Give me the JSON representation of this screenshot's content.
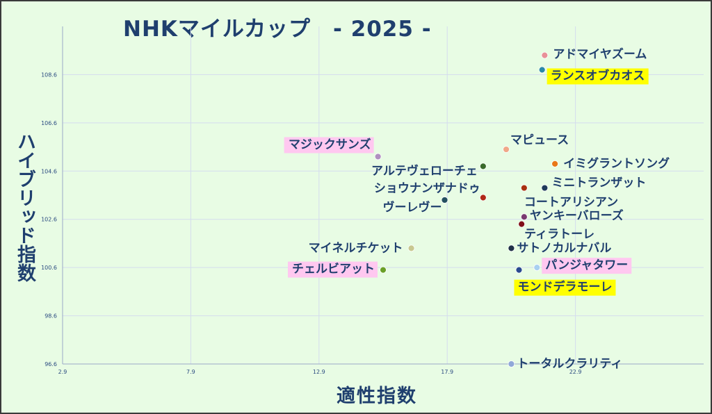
{
  "chart_data": {
    "type": "scatter",
    "title": "NHKマイルカップ　- 2025 -",
    "xlabel": "適性指数",
    "ylabel": "ハイブリッド指数",
    "xlim": [
      2.9,
      27.9
    ],
    "ylim": [
      96.6,
      110.6
    ],
    "x_ticks": [
      "2.9",
      "7.9",
      "12.9",
      "17.9",
      "22.9"
    ],
    "y_ticks": [
      "96.6",
      "98.6",
      "100.6",
      "102.6",
      "104.6",
      "106.6",
      "108.6"
    ],
    "grid": true,
    "points": [
      {
        "label": "アドマイヤズーム",
        "x": 21.7,
        "y": 109.4,
        "color": "#e89098",
        "highlight": ""
      },
      {
        "label": "ランスオブカオス",
        "x": 21.6,
        "y": 108.8,
        "color": "#2a8aa8",
        "highlight": "#ffff00"
      },
      {
        "label": "マジックサンズ",
        "x": 15.2,
        "y": 105.2,
        "color": "#b090c0",
        "highlight": "#ffc8f0"
      },
      {
        "label": "マピュース",
        "x": 20.2,
        "y": 105.5,
        "color": "#f0a888",
        "highlight": ""
      },
      {
        "label": "イミグラントソング",
        "x": 22.1,
        "y": 104.9,
        "color": "#e87818",
        "highlight": ""
      },
      {
        "label": "アルテヴェローチェ",
        "x": 19.3,
        "y": 104.8,
        "color": "#3a6a2a",
        "highlight": ""
      },
      {
        "label": "ミニトランザット",
        "x": 21.7,
        "y": 103.9,
        "color": "#1f3a5a",
        "highlight": ""
      },
      {
        "label": "ショウナンザナドゥ",
        "x": 19.3,
        "y": 103.5,
        "color": "#b02818",
        "highlight": ""
      },
      {
        "label": "コートアリシアン",
        "x": 20.9,
        "y": 103.9,
        "color": "#a83010",
        "highlight": ""
      },
      {
        "label": "ヴーレヴー",
        "x": 17.8,
        "y": 103.4,
        "color": "#245060",
        "highlight": ""
      },
      {
        "label": "ヤンキーバローズ",
        "x": 20.9,
        "y": 102.7,
        "color": "#7a3a70",
        "highlight": ""
      },
      {
        "label": "ティラトーレ",
        "x": 20.8,
        "y": 102.4,
        "color": "#801018",
        "highlight": ""
      },
      {
        "label": "マイネルチケット",
        "x": 16.5,
        "y": 101.4,
        "color": "#c8c890",
        "highlight": ""
      },
      {
        "label": "サトノカルナバル",
        "x": 20.4,
        "y": 101.4,
        "color": "#203048",
        "highlight": ""
      },
      {
        "label": "チェルビアット",
        "x": 15.4,
        "y": 100.5,
        "color": "#6aa028",
        "highlight": "#ffc8f0"
      },
      {
        "label": "パンジャタワー",
        "x": 21.4,
        "y": 100.6,
        "color": "#a8d0f0",
        "highlight": "#ffc8f0"
      },
      {
        "label": "モンドデラモーレ",
        "x": 20.7,
        "y": 100.5,
        "color": "#2a4a90",
        "highlight": "#ffff00"
      },
      {
        "label": "トータルクラリティ",
        "x": 20.4,
        "y": 96.6,
        "color": "#90a8d8",
        "highlight": ""
      }
    ]
  }
}
